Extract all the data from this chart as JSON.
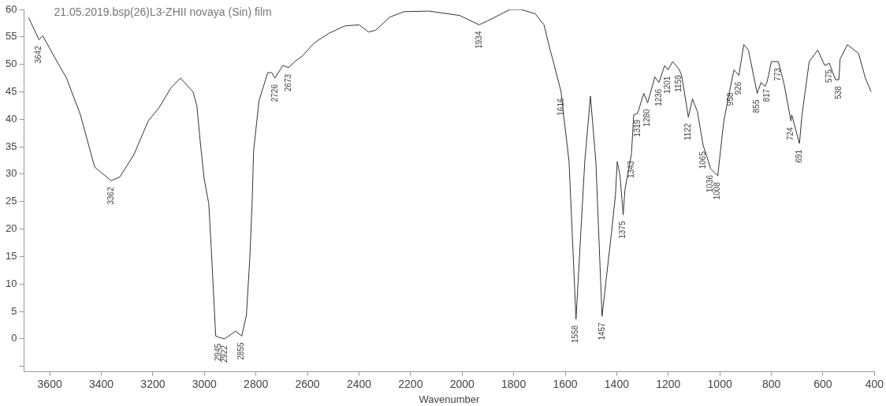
{
  "chart_data": {
    "type": "line",
    "title": "21.05.2019.bsp(26)L3-ZHII novaya (Sin) film",
    "xlabel": "Wavenumber",
    "xlim": [
      3700,
      400
    ],
    "xticks": [
      3600,
      3400,
      3200,
      3000,
      2800,
      2600,
      2400,
      2200,
      2000,
      1800,
      1600,
      1400,
      1200,
      1000,
      800,
      600,
      400
    ],
    "ylim": [
      -6,
      60
    ],
    "yticks": [
      {
        "value": -5,
        "label": null
      },
      0,
      5,
      10,
      15,
      20,
      25,
      30,
      35,
      40,
      45,
      50,
      55,
      60
    ],
    "grid": false,
    "legend": false,
    "marker": "none",
    "line_style": "solid",
    "series": [
      {
        "color": "#333333",
        "x": [
          3682,
          3642,
          3627,
          3579,
          3535,
          3481,
          3426,
          3362,
          3328,
          3273,
          3218,
          3176,
          3130,
          3093,
          3044,
          3029,
          3017,
          3001,
          2983,
          2974,
          2956,
          2945,
          2922,
          2879,
          2855,
          2837,
          2824,
          2815,
          2809,
          2788,
          2754,
          2739,
          2726,
          2696,
          2673,
          2650,
          2620,
          2574,
          2519,
          2455,
          2400,
          2363,
          2336,
          2281,
          2226,
          2128,
          2009,
          1934,
          1902,
          1814,
          1771,
          1716,
          1682,
          1661,
          1646,
          1616,
          1606,
          1585,
          1558,
          1524,
          1502,
          1481,
          1457,
          1420,
          1405,
          1398,
          1387,
          1375,
          1368,
          1343,
          1334,
          1319,
          1295,
          1280,
          1252,
          1236,
          1214,
          1201,
          1183,
          1159,
          1148,
          1122,
          1106,
          1087,
          1065,
          1044,
          1036,
          1008,
          985,
          966,
          958,
          945,
          926,
          907,
          889,
          855,
          840,
          825,
          817,
          800,
          773,
          751,
          724,
          721,
          691,
          681,
          653,
          620,
          593,
          575,
          551,
          538,
          533,
          505,
          462,
          435,
          413
        ],
        "values": [
          58.5,
          54.5,
          55.2,
          51.1,
          47.5,
          40.8,
          31.3,
          28.8,
          29.5,
          33.6,
          39.7,
          42.1,
          45.7,
          47.5,
          45,
          42.4,
          36.3,
          29.2,
          24.6,
          17,
          0.5,
          0.3,
          0,
          1.4,
          0.5,
          4.3,
          14.5,
          24.6,
          34.3,
          43.4,
          48.5,
          48.5,
          47.5,
          49.8,
          49.4,
          50.5,
          51.5,
          53.9,
          55.6,
          57,
          57.2,
          55.9,
          56.2,
          58.6,
          59.6,
          59.7,
          58.9,
          57.2,
          57.9,
          60,
          60,
          59.2,
          57.2,
          53.1,
          50.5,
          45,
          40.8,
          32.3,
          3.6,
          32.3,
          44.2,
          32.3,
          4.1,
          19.5,
          26.2,
          32.3,
          29.7,
          22.6,
          27.2,
          33.6,
          40.8,
          41.1,
          44.7,
          43,
          47.7,
          46.7,
          49.8,
          49,
          50.5,
          49.2,
          48,
          40.4,
          43.7,
          41.4,
          35.3,
          32.3,
          31,
          29.7,
          39.5,
          44.2,
          46,
          49,
          48,
          53.6,
          52.6,
          44.7,
          46.7,
          46,
          46.7,
          50.5,
          50.5,
          46.5,
          39.7,
          40.8,
          35.6,
          40.8,
          50.5,
          52.6,
          49.8,
          50.2,
          47.2,
          47.2,
          51,
          53.6,
          52,
          47.5,
          45
        ]
      }
    ],
    "annotations": [
      {
        "text": "3642",
        "x": 3642,
        "y": 54.5
      },
      {
        "text": "3362",
        "x": 3362,
        "y": 28.8
      },
      {
        "text": "2945",
        "x": 2945,
        "y": 0.3
      },
      {
        "text": "2922",
        "x": 2922,
        "y": 0
      },
      {
        "text": "2855",
        "x": 2855,
        "y": 0.5
      },
      {
        "text": "2726",
        "x": 2726,
        "y": 47.5
      },
      {
        "text": "2673",
        "x": 2673,
        "y": 49.4
      },
      {
        "text": "1934",
        "x": 1934,
        "y": 57.2
      },
      {
        "text": "1616",
        "x": 1616,
        "y": 45
      },
      {
        "text": "1558",
        "x": 1558,
        "y": 3.6
      },
      {
        "text": "1457",
        "x": 1457,
        "y": 4.1
      },
      {
        "text": "1375",
        "x": 1375,
        "y": 22.6
      },
      {
        "text": "1343",
        "x": 1343,
        "y": 33.6
      },
      {
        "text": "1319",
        "x": 1319,
        "y": 41.1
      },
      {
        "text": "1280",
        "x": 1280,
        "y": 43
      },
      {
        "text": "1236",
        "x": 1236,
        "y": 46.7
      },
      {
        "text": "1201",
        "x": 1201,
        "y": 49
      },
      {
        "text": "1159",
        "x": 1159,
        "y": 49.2
      },
      {
        "text": "1122",
        "x": 1122,
        "y": 40.4
      },
      {
        "text": "1065",
        "x": 1065,
        "y": 35.3
      },
      {
        "text": "1036",
        "x": 1036,
        "y": 31
      },
      {
        "text": "1008",
        "x": 1008,
        "y": 29.7
      },
      {
        "text": "958",
        "x": 958,
        "y": 46
      },
      {
        "text": "926",
        "x": 926,
        "y": 48
      },
      {
        "text": "855",
        "x": 855,
        "y": 44.7
      },
      {
        "text": "817",
        "x": 817,
        "y": 46.7
      },
      {
        "text": "773",
        "x": 773,
        "y": 50.5
      },
      {
        "text": "724",
        "x": 724,
        "y": 39.7
      },
      {
        "text": "691",
        "x": 691,
        "y": 35.6
      },
      {
        "text": "575",
        "x": 575,
        "y": 50.2
      },
      {
        "text": "538",
        "x": 538,
        "y": 47.2
      }
    ]
  }
}
